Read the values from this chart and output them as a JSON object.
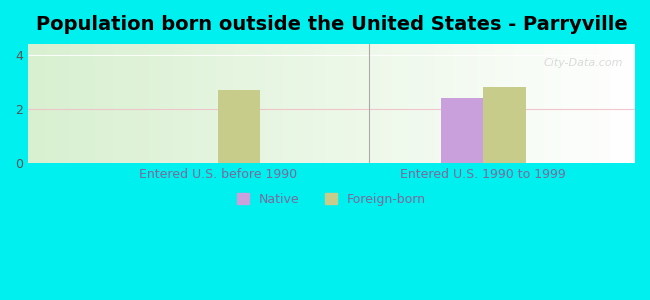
{
  "title": "Population born outside the United States - Parryville",
  "background_color": "#00EFEF",
  "plot_bg_color_left": "#d8f0d0",
  "plot_bg_color_right": "#ffffff",
  "groups": [
    "Entered U.S. before 1990",
    "Entered U.S. 1990 to 1999"
  ],
  "native_values": [
    0,
    2.4
  ],
  "foreignborn_values": [
    2.7,
    2.82
  ],
  "native_color": "#c9a0dc",
  "foreignborn_color": "#c8cc8a",
  "ylim": [
    0,
    4.4
  ],
  "yticks": [
    0,
    2,
    4
  ],
  "bar_width": 0.28,
  "legend_native_label": "Native",
  "legend_foreignborn_label": "Foreign-born",
  "gridline_color": "#f0c0c8",
  "gridline_color2": "#ffffff",
  "title_fontsize": 14,
  "tick_label_fontsize": 9,
  "axis_label_fontsize": 9
}
